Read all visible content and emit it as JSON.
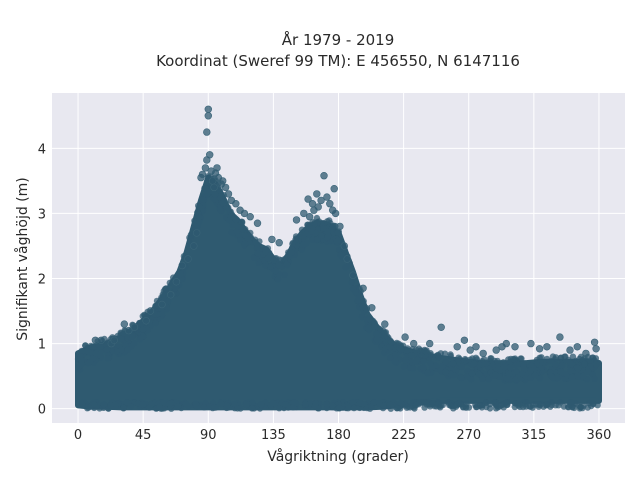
{
  "chart_data": {
    "type": "scatter",
    "title_lines": [
      "År 1979 - 2019",
      "Koordinat (Sweref 99 TM): E 456550, N 6147116"
    ],
    "xlabel": "Vågriktning (grader)",
    "ylabel": "Signifikant våghöjd (m)",
    "xlim": [
      -18,
      378
    ],
    "ylim": [
      -0.22,
      4.85
    ],
    "xticks": [
      0,
      45,
      90,
      135,
      180,
      225,
      270,
      315,
      360
    ],
    "yticks": [
      0,
      1,
      2,
      3,
      4
    ],
    "grid": true,
    "plot_background": "#e8e8f0",
    "grid_color": "#ffffff",
    "marker_color": "#2f5a70",
    "marker_edge": "#3a6478",
    "envelope": {
      "description_free": true,
      "x": [
        0,
        10,
        20,
        30,
        40,
        50,
        60,
        70,
        75,
        80,
        85,
        90,
        95,
        100,
        105,
        110,
        115,
        120,
        125,
        130,
        135,
        140,
        145,
        150,
        155,
        160,
        165,
        170,
        175,
        180,
        185,
        190,
        195,
        200,
        210,
        220,
        230,
        240,
        250,
        260,
        270,
        280,
        290,
        300,
        310,
        320,
        330,
        340,
        350,
        360
      ],
      "upper": [
        0.85,
        0.95,
        1.0,
        1.1,
        1.25,
        1.45,
        1.75,
        2.1,
        2.4,
        2.8,
        3.2,
        3.55,
        3.45,
        3.25,
        3.0,
        2.9,
        2.75,
        2.6,
        2.5,
        2.45,
        2.3,
        2.2,
        2.35,
        2.55,
        2.7,
        2.8,
        2.85,
        2.85,
        2.8,
        2.7,
        2.4,
        2.1,
        1.75,
        1.45,
        1.15,
        0.95,
        0.88,
        0.82,
        0.78,
        0.75,
        0.72,
        0.7,
        0.7,
        0.7,
        0.7,
        0.72,
        0.72,
        0.72,
        0.72,
        0.7
      ],
      "lower": [
        0.05,
        0.03,
        0.03,
        0.02,
        0.02,
        0.02,
        0.02,
        0.02,
        0.02,
        0.02,
        0.02,
        0.02,
        0.02,
        0.02,
        0.02,
        0.02,
        0.02,
        0.02,
        0.02,
        0.02,
        0.02,
        0.02,
        0.02,
        0.02,
        0.02,
        0.02,
        0.02,
        0.02,
        0.02,
        0.02,
        0.02,
        0.02,
        0.02,
        0.02,
        0.03,
        0.05,
        0.08,
        0.1,
        0.12,
        0.12,
        0.12,
        0.12,
        0.12,
        0.12,
        0.12,
        0.12,
        0.12,
        0.12,
        0.12,
        0.12
      ]
    },
    "outliers": {
      "x": [
        85,
        86,
        88,
        89,
        89,
        90,
        90,
        91,
        92,
        93,
        94,
        95,
        96,
        97,
        99,
        100,
        102,
        104,
        106,
        109,
        112,
        115,
        119,
        124,
        134,
        139,
        151,
        156,
        159,
        160,
        162,
        163,
        165,
        166,
        168,
        170,
        172,
        174,
        176,
        177,
        178,
        181,
        184,
        186,
        190,
        197,
        203,
        212,
        226,
        232,
        243,
        251,
        262,
        267,
        271,
        275,
        280,
        289,
        293,
        296,
        302,
        313,
        319,
        324,
        333,
        340,
        345,
        351,
        357,
        358,
        12,
        16,
        23,
        25,
        32,
        35,
        39,
        47,
        50,
        58,
        64,
        68,
        72,
        76,
        80,
        82
      ],
      "y": [
        3.55,
        3.6,
        3.7,
        3.82,
        4.25,
        4.5,
        4.6,
        3.9,
        3.65,
        3.5,
        3.4,
        3.62,
        3.7,
        3.55,
        3.45,
        3.5,
        3.4,
        3.3,
        3.2,
        3.15,
        3.05,
        3.0,
        2.95,
        2.85,
        2.6,
        2.55,
        2.9,
        3.0,
        3.22,
        2.95,
        3.15,
        3.05,
        3.3,
        3.1,
        3.2,
        3.58,
        3.25,
        3.15,
        3.05,
        3.38,
        3.0,
        2.8,
        2.5,
        2.3,
        2.05,
        1.85,
        1.55,
        1.3,
        1.1,
        1.0,
        1.0,
        1.25,
        0.95,
        1.05,
        0.9,
        0.95,
        0.85,
        0.9,
        0.95,
        1.0,
        0.95,
        1.0,
        0.92,
        0.95,
        1.1,
        0.9,
        0.95,
        0.85,
        1.02,
        0.92,
        1.05,
        1.05,
        1.0,
        1.05,
        1.3,
        1.2,
        1.25,
        1.35,
        1.5,
        1.6,
        1.75,
        1.95,
        2.2,
        2.3,
        2.5,
        2.7
      ]
    }
  }
}
